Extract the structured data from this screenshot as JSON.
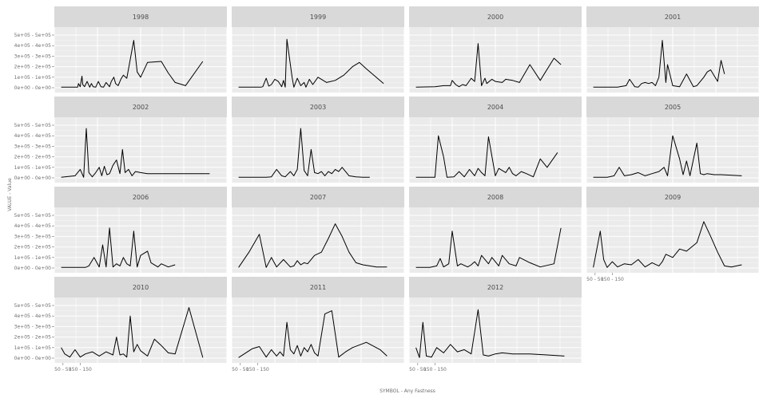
{
  "chart_data": {
    "type": "line",
    "title": "",
    "xlabel": "SYMBOL - Any Fastness",
    "ylabel": "VALUE - Value",
    "ylim": [
      0,
      500000
    ],
    "y_ticks": [
      0,
      100000,
      200000,
      300000,
      400000,
      500000
    ],
    "y_tick_labels": [
      "0e+00 - 0e+00",
      "1e+05 - 1e+05",
      "2e+05 - 2e+05",
      "3e+05 - 3e+05",
      "4e+05 - 4e+05",
      "5e+05 - 5e+05"
    ],
    "xlim": [
      0,
      1000
    ],
    "x_ticks": [
      50,
      150
    ],
    "x_tick_labels": [
      "50 - 50",
      "150 - 150"
    ],
    "grid": true,
    "facet_layout": {
      "columns": 4,
      "rows": 4
    },
    "facets": [
      {
        "label": "1998",
        "x": [
          40,
          120,
          135,
          140,
          150,
          160,
          165,
          175,
          190,
          205,
          215,
          225,
          240,
          255,
          270,
          285,
          300,
          320,
          330,
          345,
          355,
          370,
          385,
          400,
          420,
          460,
          480,
          500,
          540,
          620,
          660,
          700,
          760,
          860
        ],
        "y": [
          5000,
          5000,
          5000,
          40000,
          10000,
          110000,
          30000,
          10000,
          60000,
          5000,
          40000,
          10000,
          5000,
          60000,
          10000,
          5000,
          50000,
          10000,
          60000,
          100000,
          40000,
          20000,
          80000,
          120000,
          90000,
          450000,
          150000,
          100000,
          240000,
          250000,
          140000,
          50000,
          20000,
          250000
        ]
      },
      {
        "label": "1999",
        "x": [
          40,
          120,
          160,
          170,
          180,
          200,
          215,
          230,
          250,
          270,
          290,
          300,
          310,
          320,
          350,
          360,
          380,
          400,
          420,
          430,
          450,
          470,
          500,
          550,
          600,
          650,
          700,
          740,
          780,
          880
        ],
        "y": [
          5000,
          5000,
          5000,
          5000,
          10000,
          90000,
          15000,
          30000,
          80000,
          60000,
          10000,
          70000,
          5000,
          460000,
          100000,
          5000,
          90000,
          20000,
          50000,
          5000,
          80000,
          30000,
          100000,
          50000,
          70000,
          120000,
          200000,
          240000,
          180000,
          40000
        ]
      },
      {
        "label": "2000",
        "x": [
          40,
          150,
          200,
          240,
          250,
          270,
          290,
          310,
          330,
          360,
          380,
          400,
          420,
          440,
          450,
          480,
          500,
          540,
          560,
          600,
          640,
          700,
          760,
          840,
          880
        ],
        "y": [
          5000,
          10000,
          20000,
          20000,
          70000,
          30000,
          10000,
          30000,
          20000,
          90000,
          60000,
          420000,
          20000,
          90000,
          40000,
          80000,
          60000,
          50000,
          80000,
          70000,
          50000,
          220000,
          70000,
          280000,
          220000
        ]
      },
      {
        "label": "2001",
        "x": [
          40,
          130,
          180,
          230,
          250,
          280,
          300,
          320,
          340,
          360,
          380,
          400,
          420,
          440,
          460,
          470,
          500,
          540,
          580,
          620,
          640,
          680,
          700,
          720,
          760,
          780,
          800
        ],
        "y": [
          5000,
          5000,
          5000,
          20000,
          80000,
          10000,
          5000,
          40000,
          50000,
          40000,
          50000,
          20000,
          100000,
          450000,
          50000,
          220000,
          20000,
          10000,
          130000,
          10000,
          20000,
          100000,
          150000,
          170000,
          60000,
          260000,
          130000
        ]
      },
      {
        "label": "2002",
        "x": [
          40,
          120,
          150,
          170,
          185,
          200,
          220,
          240,
          260,
          275,
          290,
          305,
          320,
          340,
          360,
          380,
          395,
          410,
          430,
          450,
          470,
          500,
          540,
          900
        ],
        "y": [
          5000,
          20000,
          80000,
          5000,
          470000,
          50000,
          10000,
          50000,
          100000,
          20000,
          110000,
          30000,
          40000,
          120000,
          170000,
          40000,
          270000,
          50000,
          80000,
          20000,
          60000,
          50000,
          40000,
          40000
        ]
      },
      {
        "label": "2003",
        "x": [
          40,
          200,
          230,
          260,
          290,
          310,
          340,
          360,
          380,
          400,
          420,
          440,
          460,
          480,
          500,
          520,
          540,
          560,
          580,
          600,
          620,
          640,
          680,
          720,
          760,
          800
        ],
        "y": [
          5000,
          5000,
          10000,
          80000,
          20000,
          10000,
          60000,
          20000,
          80000,
          470000,
          70000,
          20000,
          270000,
          50000,
          40000,
          60000,
          20000,
          60000,
          40000,
          80000,
          60000,
          100000,
          20000,
          10000,
          5000,
          5000
        ]
      },
      {
        "label": "2004",
        "x": [
          40,
          100,
          130,
          150,
          170,
          200,
          220,
          260,
          290,
          320,
          350,
          380,
          400,
          420,
          440,
          460,
          500,
          520,
          560,
          580,
          600,
          620,
          650,
          680,
          720,
          760,
          800,
          860
        ],
        "y": [
          5000,
          5000,
          5000,
          5000,
          400000,
          200000,
          5000,
          10000,
          60000,
          10000,
          80000,
          20000,
          90000,
          50000,
          20000,
          390000,
          20000,
          90000,
          50000,
          100000,
          40000,
          20000,
          60000,
          40000,
          10000,
          180000,
          100000,
          240000
        ]
      },
      {
        "label": "2005",
        "x": [
          40,
          120,
          160,
          190,
          220,
          260,
          300,
          340,
          380,
          420,
          450,
          470,
          500,
          540,
          560,
          580,
          600,
          640,
          660,
          680,
          700,
          740,
          780,
          900
        ],
        "y": [
          5000,
          5000,
          20000,
          100000,
          20000,
          30000,
          50000,
          20000,
          40000,
          60000,
          100000,
          20000,
          400000,
          180000,
          30000,
          160000,
          20000,
          330000,
          40000,
          30000,
          40000,
          30000,
          30000,
          20000
        ]
      },
      {
        "label": "2006",
        "x": [
          40,
          150,
          180,
          200,
          230,
          260,
          280,
          300,
          320,
          340,
          360,
          380,
          400,
          420,
          440,
          460,
          480,
          500,
          540,
          560,
          600,
          620,
          660,
          700
        ],
        "y": [
          5000,
          5000,
          5000,
          20000,
          100000,
          10000,
          220000,
          10000,
          380000,
          10000,
          40000,
          20000,
          100000,
          40000,
          20000,
          350000,
          10000,
          120000,
          160000,
          50000,
          10000,
          40000,
          10000,
          30000
        ]
      },
      {
        "label": "2007",
        "x": [
          40,
          100,
          160,
          200,
          230,
          260,
          300,
          340,
          360,
          380,
          400,
          420,
          440,
          480,
          520,
          560,
          600,
          640,
          680,
          720,
          760,
          800,
          840,
          900
        ],
        "y": [
          5000,
          150000,
          320000,
          5000,
          100000,
          10000,
          80000,
          10000,
          20000,
          70000,
          30000,
          50000,
          40000,
          120000,
          150000,
          280000,
          420000,
          300000,
          150000,
          50000,
          30000,
          20000,
          10000,
          10000
        ]
      },
      {
        "label": "2008",
        "x": [
          40,
          120,
          160,
          180,
          200,
          230,
          250,
          280,
          300,
          340,
          360,
          380,
          400,
          420,
          460,
          480,
          520,
          540,
          580,
          620,
          640,
          700,
          760,
          840,
          880
        ],
        "y": [
          5000,
          5000,
          20000,
          90000,
          10000,
          40000,
          350000,
          20000,
          40000,
          10000,
          30000,
          60000,
          20000,
          120000,
          40000,
          100000,
          20000,
          120000,
          40000,
          20000,
          100000,
          50000,
          10000,
          40000,
          380000
        ]
      },
      {
        "label": "2009",
        "x": [
          40,
          80,
          100,
          120,
          150,
          180,
          220,
          260,
          300,
          340,
          380,
          420,
          440,
          460,
          500,
          540,
          580,
          640,
          680,
          720,
          760,
          800,
          840,
          900
        ],
        "y": [
          5000,
          350000,
          80000,
          5000,
          60000,
          10000,
          40000,
          30000,
          80000,
          10000,
          50000,
          20000,
          60000,
          130000,
          100000,
          180000,
          160000,
          240000,
          440000,
          300000,
          150000,
          20000,
          10000,
          30000
        ]
      },
      {
        "label": "2010",
        "x": [
          40,
          60,
          90,
          120,
          150,
          180,
          220,
          260,
          300,
          340,
          360,
          380,
          400,
          420,
          440,
          460,
          480,
          500,
          540,
          580,
          620,
          660,
          700,
          780,
          860
        ],
        "y": [
          100000,
          40000,
          10000,
          80000,
          10000,
          40000,
          60000,
          20000,
          60000,
          30000,
          200000,
          30000,
          40000,
          10000,
          400000,
          60000,
          130000,
          70000,
          20000,
          180000,
          120000,
          50000,
          40000,
          480000,
          5000
        ]
      },
      {
        "label": "2011",
        "x": [
          40,
          120,
          160,
          200,
          230,
          260,
          280,
          300,
          320,
          340,
          360,
          380,
          400,
          420,
          440,
          460,
          480,
          500,
          540,
          580,
          620,
          660,
          700,
          780,
          860,
          900
        ],
        "y": [
          5000,
          90000,
          110000,
          10000,
          80000,
          20000,
          60000,
          20000,
          340000,
          80000,
          40000,
          120000,
          20000,
          100000,
          60000,
          130000,
          50000,
          20000,
          420000,
          450000,
          10000,
          60000,
          100000,
          150000,
          80000,
          20000
        ]
      },
      {
        "label": "2012",
        "x": [
          40,
          60,
          80,
          100,
          130,
          160,
          200,
          240,
          280,
          320,
          360,
          400,
          430,
          460,
          500,
          540,
          600,
          700,
          800,
          900
        ],
        "y": [
          100000,
          5000,
          340000,
          20000,
          10000,
          100000,
          50000,
          130000,
          60000,
          80000,
          40000,
          460000,
          30000,
          20000,
          40000,
          50000,
          40000,
          40000,
          30000,
          20000
        ]
      }
    ]
  }
}
